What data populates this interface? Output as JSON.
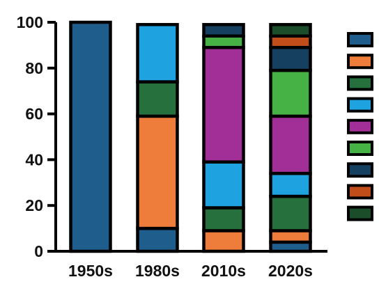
{
  "chart_data": {
    "type": "bar",
    "stacked": true,
    "categories": [
      "1950s",
      "1980s",
      "2010s",
      "2020s"
    ],
    "ylim": [
      0,
      100
    ],
    "yticks": [
      "0",
      "20",
      "40",
      "60",
      "80",
      "100"
    ],
    "grid": false,
    "legend": "right",
    "series": [
      {
        "color": "#1f5d8c",
        "values": [
          100,
          10,
          0,
          4
        ]
      },
      {
        "color": "#ee7c3a",
        "values": [
          0,
          49,
          9,
          5
        ]
      },
      {
        "color": "#25703c",
        "values": [
          0,
          15,
          10,
          15
        ]
      },
      {
        "color": "#1ea2e0",
        "values": [
          0,
          25,
          20,
          10
        ]
      },
      {
        "color": "#a22f97",
        "values": [
          0,
          0,
          50,
          25
        ]
      },
      {
        "color": "#46b246",
        "values": [
          0,
          0,
          5,
          20
        ]
      },
      {
        "color": "#15405f",
        "values": [
          0,
          0,
          5,
          10
        ]
      },
      {
        "color": "#c14e1a",
        "values": [
          0,
          0,
          0,
          5
        ]
      },
      {
        "color": "#1c4d2a",
        "values": [
          0,
          0,
          0,
          5
        ]
      }
    ]
  }
}
